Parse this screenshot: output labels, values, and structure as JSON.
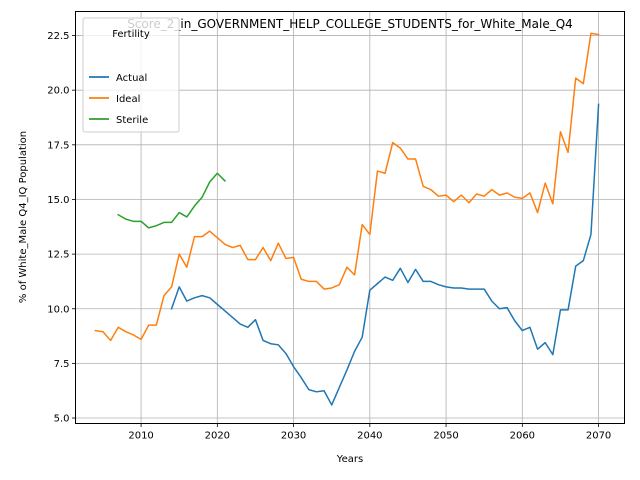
{
  "chart_data": {
    "type": "line",
    "title": "Score_2_in_GOVERNMENT_HELP_COLLEGE_STUDENTS_for_White_Male_Q4",
    "xlabel": "Years",
    "ylabel": "% of White_Male Q4_IQ Population",
    "xlim": [
      2001.4,
      2073.4
    ],
    "ylim": [
      4.75,
      23.6
    ],
    "xticks": [
      2010,
      2020,
      2030,
      2040,
      2050,
      2060,
      2070
    ],
    "xtick_labels": [
      "2010",
      "2020",
      "2030",
      "2040",
      "2050",
      "2060",
      "2070"
    ],
    "yticks": [
      5.0,
      7.5,
      10.0,
      12.5,
      15.0,
      17.5,
      20.0,
      22.5
    ],
    "ytick_labels": [
      "5.0",
      "7.5",
      "10.0",
      "12.5",
      "15.0",
      "17.5",
      "20.0",
      "22.5"
    ],
    "grid": true,
    "legend_title": "Fertility",
    "legend_position": "top-left",
    "series": [
      {
        "name": "Actual",
        "color": "#1f77b4",
        "x": [
          2014,
          2015,
          2016,
          2017,
          2018,
          2019,
          2020,
          2021,
          2022,
          2023,
          2024,
          2025,
          2026,
          2027,
          2028,
          2029,
          2030,
          2031,
          2032,
          2033,
          2034,
          2035,
          2036,
          2037,
          2038,
          2039,
          2040,
          2041,
          2042,
          2043,
          2044,
          2045,
          2046,
          2047,
          2048,
          2049,
          2050,
          2051,
          2052,
          2053,
          2054,
          2055,
          2056,
          2057,
          2058,
          2059,
          2060,
          2061,
          2062,
          2063,
          2064,
          2065,
          2066,
          2067,
          2068,
          2069,
          2070
        ],
        "y": [
          10.0,
          11.0,
          10.35,
          10.5,
          10.6,
          10.5,
          10.2,
          9.9,
          9.6,
          9.3,
          9.15,
          9.5,
          8.55,
          8.4,
          8.35,
          7.95,
          7.35,
          6.85,
          6.3,
          6.2,
          6.25,
          5.6,
          6.4,
          7.2,
          8.05,
          8.7,
          10.85,
          11.15,
          11.45,
          11.3,
          11.85,
          11.2,
          11.8,
          11.25,
          11.25,
          11.1,
          11.0,
          10.95,
          10.95,
          10.9,
          10.9,
          10.9,
          10.35,
          10.0,
          10.05,
          9.45,
          9.0,
          9.15,
          8.15,
          8.45,
          7.9,
          9.95,
          9.95,
          11.95,
          12.2,
          13.4,
          19.35
        ]
      },
      {
        "name": "Ideal",
        "color": "#ff7f0e",
        "x": [
          2004,
          2005,
          2006,
          2007,
          2008,
          2009,
          2010,
          2011,
          2012,
          2013,
          2014,
          2015,
          2016,
          2017,
          2018,
          2019,
          2020,
          2021,
          2022,
          2023,
          2024,
          2025,
          2026,
          2027,
          2028,
          2029,
          2030,
          2031,
          2032,
          2033,
          2034,
          2035,
          2036,
          2037,
          2038,
          2039,
          2040,
          2041,
          2042,
          2043,
          2044,
          2045,
          2046,
          2047,
          2048,
          2049,
          2050,
          2051,
          2052,
          2053,
          2054,
          2055,
          2056,
          2057,
          2058,
          2059,
          2060,
          2061,
          2062,
          2063,
          2064,
          2065,
          2066,
          2067,
          2068,
          2069,
          2070
        ],
        "y": [
          9.0,
          8.95,
          8.55,
          9.15,
          8.95,
          8.8,
          8.6,
          9.25,
          9.25,
          10.6,
          11.0,
          12.5,
          11.9,
          13.3,
          13.3,
          13.55,
          13.25,
          12.95,
          12.8,
          12.9,
          12.25,
          12.25,
          12.8,
          12.2,
          13.0,
          12.3,
          12.35,
          11.35,
          11.25,
          11.25,
          10.9,
          10.95,
          11.1,
          11.9,
          11.55,
          13.85,
          13.4,
          16.3,
          16.2,
          17.6,
          17.35,
          16.85,
          16.85,
          15.6,
          15.45,
          15.15,
          15.2,
          14.9,
          15.2,
          14.85,
          15.25,
          15.15,
          15.45,
          15.2,
          15.3,
          15.1,
          15.05,
          15.3,
          14.4,
          15.75,
          14.8,
          18.1,
          17.15,
          20.55,
          20.3,
          22.6,
          22.55
        ]
      },
      {
        "name": "Sterile",
        "color": "#2ca02c",
        "x": [
          2007,
          2008,
          2009,
          2010,
          2011,
          2012,
          2013,
          2014,
          2015,
          2016,
          2017,
          2018,
          2019,
          2020,
          2021
        ],
        "y": [
          14.3,
          14.1,
          14.0,
          14.0,
          13.7,
          13.8,
          13.95,
          13.95,
          14.4,
          14.2,
          14.7,
          15.1,
          15.8,
          16.2,
          15.85
        ]
      }
    ]
  }
}
